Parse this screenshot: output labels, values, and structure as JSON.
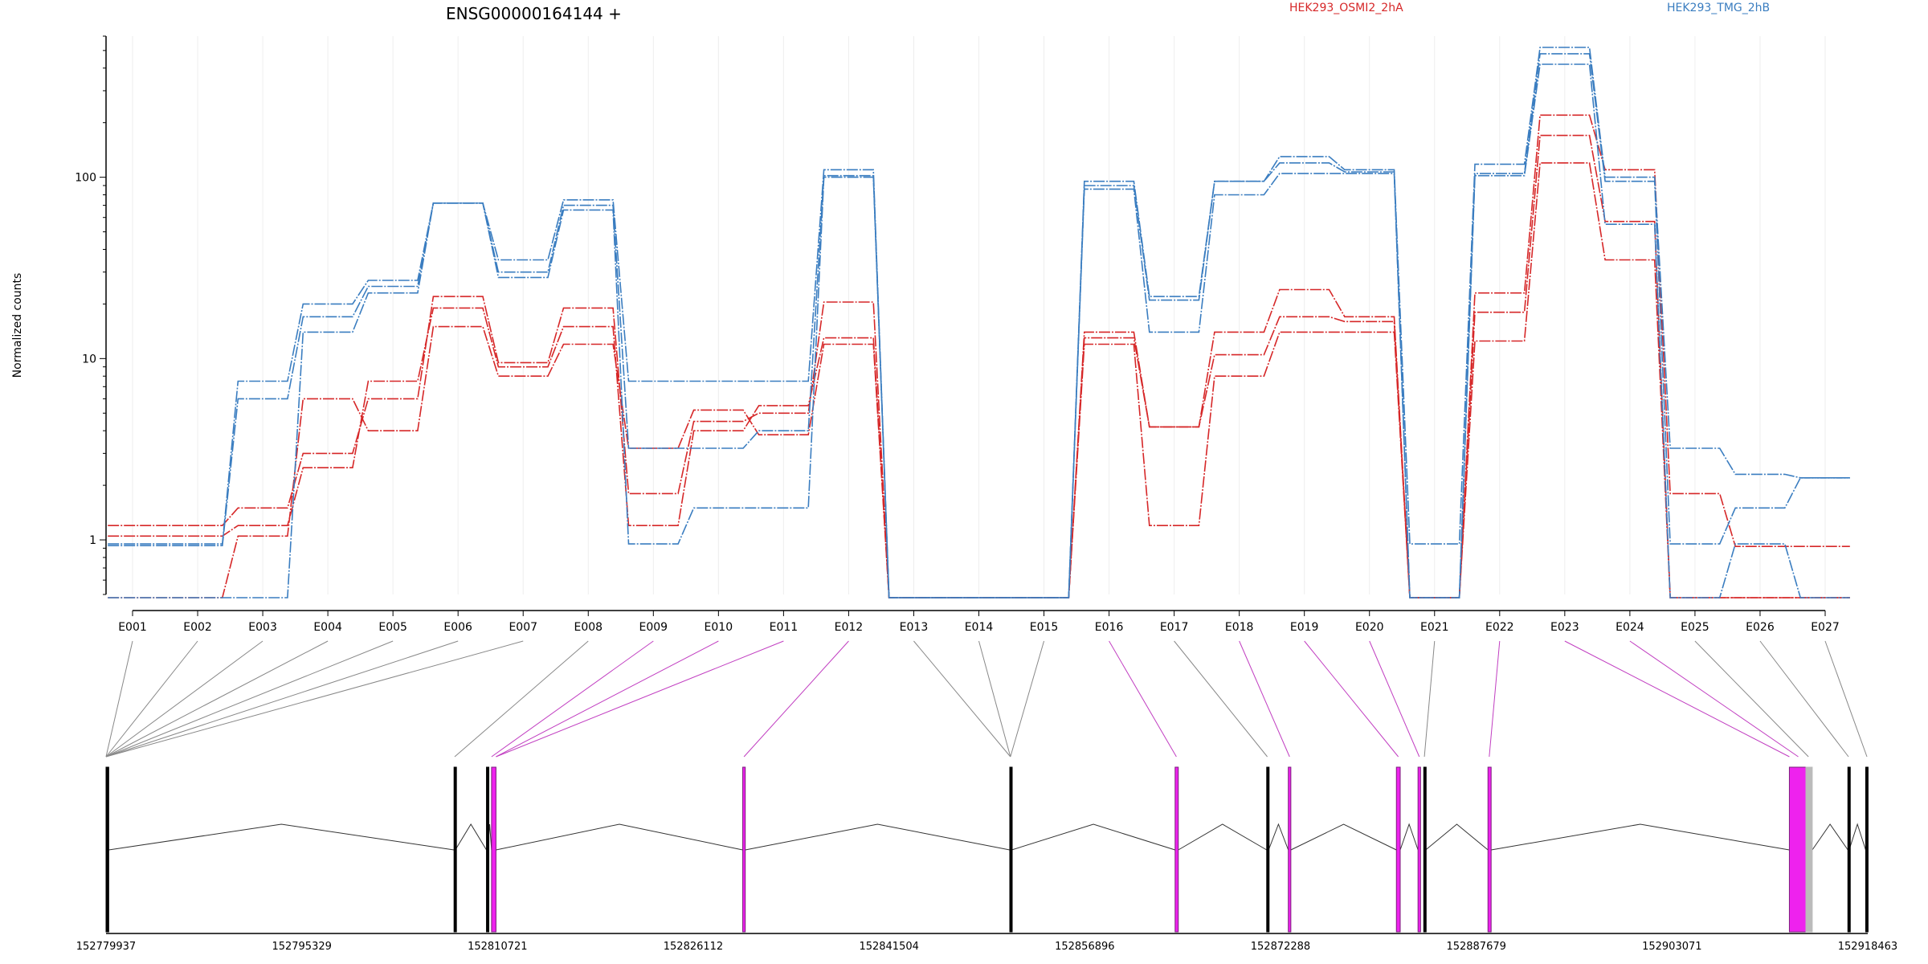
{
  "chart_data": {
    "type": "line",
    "title": "ENSG00000164144 +",
    "ylabel": "Normalized counts",
    "yscale": "log",
    "ylim": [
      0.5,
      600
    ],
    "yticks": [
      1,
      10,
      100
    ],
    "ytick_labels": [
      "1",
      "10",
      "100"
    ],
    "categories": [
      "E001",
      "E002",
      "E003",
      "E004",
      "E005",
      "E006",
      "E007",
      "E008",
      "E009",
      "E010",
      "E011",
      "E012",
      "E013",
      "E014",
      "E015",
      "E016",
      "E017",
      "E018",
      "E019",
      "E020",
      "E021",
      "E022",
      "E023",
      "E024",
      "E025",
      "E026",
      "E027"
    ],
    "legend": [
      {
        "label": "HEK293_OSMI2_2hA",
        "color": "#d62728"
      },
      {
        "label": "HEK293_TMG_2hB",
        "color": "#3a7dc0"
      }
    ],
    "series": [
      {
        "group": "HEK293_OSMI2_2hA",
        "color": "#d62728",
        "values": [
          1.2,
          1.2,
          1.5,
          3.0,
          6.0,
          22,
          9.5,
          19,
          1.8,
          4.5,
          5.0,
          20.5,
          0.48,
          0.48,
          0.48,
          14,
          4.2,
          14,
          24,
          17,
          0.48,
          23,
          220,
          110,
          1.8,
          0.92,
          0.92
        ]
      },
      {
        "group": "HEK293_OSMI2_2hA",
        "color": "#d62728",
        "values": [
          1.05,
          1.05,
          1.2,
          2.5,
          7.5,
          19,
          9.0,
          15,
          1.2,
          4.0,
          5.5,
          13,
          0.48,
          0.48,
          0.48,
          13,
          4.2,
          10.5,
          17,
          16,
          0.48,
          18,
          170,
          57,
          0.48,
          0.48,
          0.48
        ]
      },
      {
        "group": "HEK293_OSMI2_2hA",
        "color": "#d62728",
        "values": [
          0.48,
          0.48,
          1.05,
          6.0,
          4.0,
          15,
          8.0,
          12,
          3.2,
          5.2,
          3.8,
          12,
          0.48,
          0.48,
          0.48,
          12,
          1.2,
          8.0,
          14,
          14,
          0.48,
          12.5,
          120,
          35,
          0.48,
          0.48,
          0.48
        ]
      },
      {
        "group": "HEK293_TMG_2hB",
        "color": "#3a7dc0",
        "values": [
          0.95,
          0.95,
          7.5,
          20,
          27,
          72,
          35,
          75,
          7.5,
          7.5,
          7.5,
          110,
          0.48,
          0.48,
          0.48,
          95,
          22,
          95,
          130,
          110,
          0.95,
          118,
          520,
          100,
          3.2,
          2.3,
          2.2
        ]
      },
      {
        "group": "HEK293_TMG_2hB",
        "color": "#3a7dc0",
        "values": [
          0.93,
          0.93,
          6.0,
          17,
          25,
          72,
          30,
          70,
          3.2,
          3.2,
          4.0,
          102,
          0.48,
          0.48,
          0.48,
          90,
          21,
          95,
          120,
          107,
          0.48,
          105,
          480,
          95,
          0.95,
          1.5,
          2.2
        ]
      },
      {
        "group": "HEK293_TMG_2hB",
        "color": "#3a7dc0",
        "values": [
          0.48,
          0.48,
          0.48,
          14,
          23,
          72,
          28,
          66,
          0.95,
          1.5,
          1.5,
          100,
          0.48,
          0.48,
          0.48,
          86,
          14,
          80,
          105,
          105,
          0.48,
          102,
          420,
          55,
          0.48,
          0.95,
          0.48
        ]
      }
    ],
    "genomic_axis": {
      "tick_labels": [
        "152779937",
        "152795329",
        "152810721",
        "152826112",
        "152841504",
        "152856896",
        "152872288",
        "152887679",
        "152903071",
        "152918463"
      ],
      "start": 152779937,
      "end": 152918463
    }
  }
}
